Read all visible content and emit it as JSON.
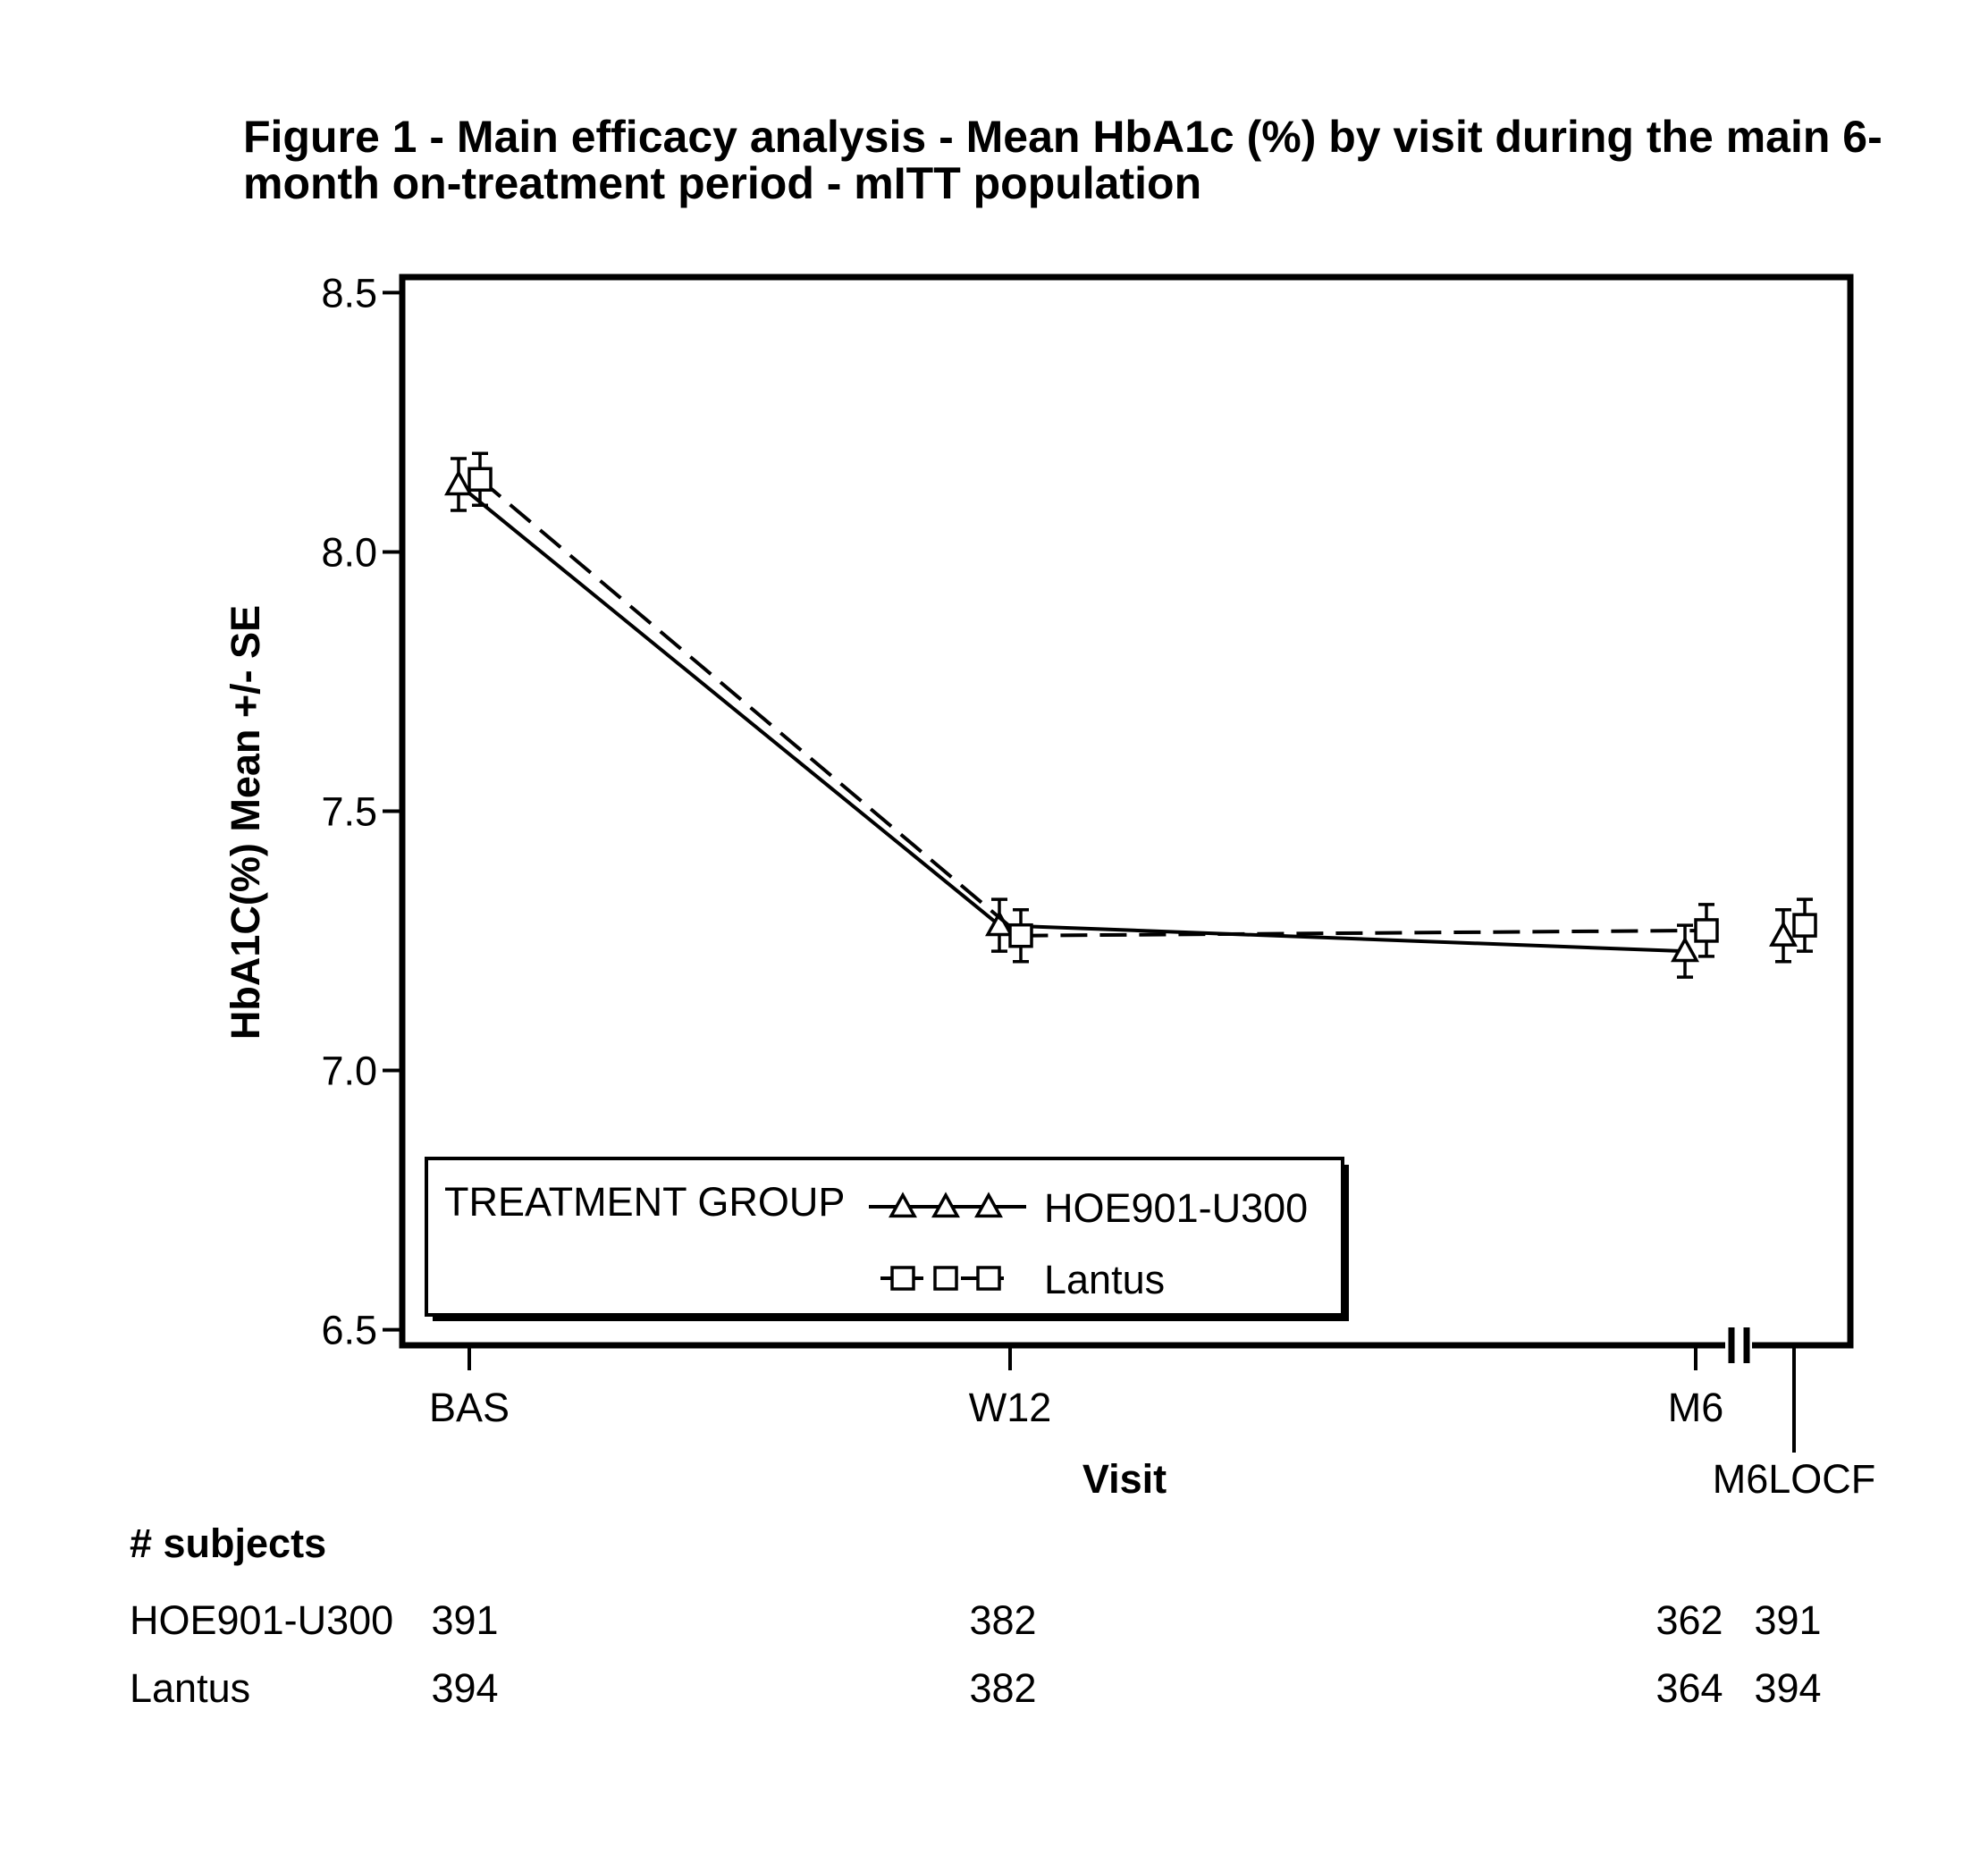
{
  "chart_data": {
    "type": "line",
    "title_line1": "Figure 1 - Main efficacy analysis - Mean HbA1c (%) by visit during the main 6-",
    "title_line2": "month on-treatment period - mITT population",
    "xlabel": "Visit",
    "ylabel": "HbA1C(%) Mean +/- SE",
    "ylim": [
      6.47,
      8.53
    ],
    "yticks": [
      "6.5",
      "7.0",
      "7.5",
      "8.0",
      "8.5"
    ],
    "categories": [
      "BAS",
      "W12",
      "M6",
      "M6LOCF"
    ],
    "legend": {
      "title": "TREATMENT GROUP",
      "placement": "bottom-left"
    },
    "series": [
      {
        "name": "HOE901-U300",
        "marker": "triangle",
        "line": "solid",
        "values": [
          8.13,
          7.28,
          7.23,
          7.26
        ],
        "se": [
          0.05,
          0.05,
          0.05,
          0.05
        ],
        "connected": [
          true,
          true,
          true,
          false
        ]
      },
      {
        "name": "Lantus",
        "marker": "square",
        "line": "dashed",
        "values": [
          8.14,
          7.26,
          7.27,
          7.28
        ],
        "se": [
          0.05,
          0.05,
          0.05,
          0.05
        ],
        "connected": [
          true,
          true,
          true,
          false
        ]
      }
    ],
    "subjects_table": {
      "heading": "# subjects",
      "rows": [
        {
          "label": "HOE901-U300",
          "counts": [
            "391",
            "382",
            "362",
            "391"
          ]
        },
        {
          "label": "Lantus",
          "counts": [
            "394",
            "382",
            "364",
            "394"
          ]
        }
      ]
    }
  }
}
